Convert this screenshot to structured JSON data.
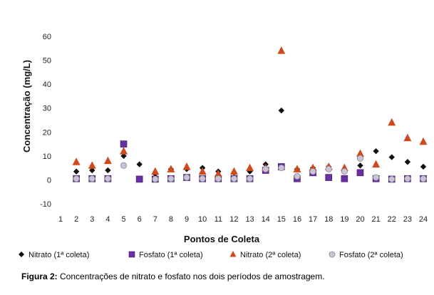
{
  "chart_data": {
    "type": "scatter",
    "xlabel": "Pontos de Coleta",
    "ylabel": "Concentração (mg/L)",
    "xlim": [
      1,
      24
    ],
    "ylim": [
      -10,
      60
    ],
    "x_ticks": [
      1,
      2,
      3,
      4,
      5,
      6,
      7,
      8,
      9,
      10,
      11,
      12,
      13,
      14,
      15,
      16,
      17,
      18,
      19,
      20,
      21,
      22,
      23,
      24
    ],
    "y_ticks": [
      -10,
      0,
      10,
      20,
      30,
      40,
      50,
      60
    ],
    "grid": false,
    "legend_position": "bottom",
    "series": [
      {
        "name": "Nitrato (1ª coleta)",
        "marker": "diamond",
        "color": "#111111",
        "points": [
          [
            2,
            3.5
          ],
          [
            3,
            4
          ],
          [
            4,
            4
          ],
          [
            5,
            10
          ],
          [
            6,
            6.5
          ],
          [
            7,
            2.5
          ],
          [
            8,
            4.5
          ],
          [
            9,
            4.5
          ],
          [
            10,
            5
          ],
          [
            11,
            3.5
          ],
          [
            12,
            3
          ],
          [
            13,
            3.5
          ],
          [
            14,
            6.5
          ],
          [
            15,
            29
          ],
          [
            16,
            4.5
          ],
          [
            17,
            5
          ],
          [
            18,
            5.5
          ],
          [
            19,
            4
          ],
          [
            20,
            6
          ],
          [
            21,
            12
          ],
          [
            22,
            9.5
          ],
          [
            23,
            7.5
          ],
          [
            24,
            5.5
          ]
        ]
      },
      {
        "name": "Fosfato (1ª coleta)",
        "marker": "square",
        "color": "#6a2fa0",
        "points": [
          [
            2,
            0.5
          ],
          [
            3,
            0.5
          ],
          [
            4,
            0.5
          ],
          [
            5,
            15
          ],
          [
            6,
            0.3
          ],
          [
            7,
            0.3
          ],
          [
            8,
            0.5
          ],
          [
            9,
            1
          ],
          [
            10,
            0.5
          ],
          [
            11,
            0.5
          ],
          [
            12,
            0.5
          ],
          [
            13,
            0.5
          ],
          [
            14,
            4
          ],
          [
            15,
            5.5
          ],
          [
            16,
            0.5
          ],
          [
            17,
            3
          ],
          [
            18,
            1
          ],
          [
            19,
            0.5
          ],
          [
            20,
            3
          ],
          [
            21,
            0.5
          ],
          [
            22,
            0.3
          ],
          [
            23,
            0.5
          ],
          [
            24,
            0.5
          ]
        ]
      },
      {
        "name": "Nitrato (2ª coleta)",
        "marker": "triangle",
        "color": "#d0491c",
        "points": [
          [
            2,
            7.5
          ],
          [
            3,
            6
          ],
          [
            4,
            8
          ],
          [
            5,
            12
          ],
          [
            7,
            3.5
          ],
          [
            8,
            4.5
          ],
          [
            9,
            5.5
          ],
          [
            10,
            3.5
          ],
          [
            11,
            2.5
          ],
          [
            12,
            3.5
          ],
          [
            13,
            5
          ],
          [
            14,
            5
          ],
          [
            15,
            54
          ],
          [
            16,
            4.5
          ],
          [
            17,
            5
          ],
          [
            18,
            5.5
          ],
          [
            19,
            5
          ],
          [
            20,
            11
          ],
          [
            21,
            6.5
          ],
          [
            22,
            24
          ],
          [
            23,
            17.5
          ],
          [
            24,
            16
          ]
        ]
      },
      {
        "name": "Fosfato (2ª coleta)",
        "marker": "circle",
        "color": "#c8c4d4",
        "points": [
          [
            2,
            0.5
          ],
          [
            3,
            0.5
          ],
          [
            4,
            0.5
          ],
          [
            5,
            6
          ],
          [
            7,
            0.3
          ],
          [
            8,
            0.5
          ],
          [
            9,
            1
          ],
          [
            10,
            0.5
          ],
          [
            11,
            0.5
          ],
          [
            12,
            0.5
          ],
          [
            13,
            0.5
          ],
          [
            14,
            4.5
          ],
          [
            15,
            5
          ],
          [
            16,
            1.5
          ],
          [
            17,
            3.5
          ],
          [
            18,
            4.5
          ],
          [
            19,
            3.5
          ],
          [
            20,
            9
          ],
          [
            21,
            1
          ],
          [
            22,
            0.3
          ],
          [
            23,
            0.5
          ],
          [
            24,
            0.5
          ]
        ]
      }
    ]
  },
  "caption": {
    "label": "Figura 2:",
    "text": " Concentrações de nitrato e fosfato nos dois períodos de amostragem."
  }
}
